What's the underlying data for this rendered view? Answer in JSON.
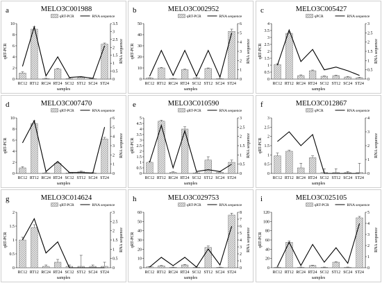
{
  "figure": {
    "x_axis_label": "samples",
    "primary_axis_label": "qRT-PCR",
    "secondary_axis_label": "RNA sequence",
    "bar_fill_color": "#e6e6e6",
    "bar_stroke_color": "#555555",
    "line_color": "#000000"
  },
  "chart_data": [
    {
      "type": "bar",
      "panel_letter": "a",
      "title": "MELO3C001988",
      "categories": [
        "RC12",
        "RT12",
        "RC24",
        "RT24",
        "SC12",
        "ST12",
        "SC24",
        "ST24"
      ],
      "xlabel": "samples",
      "ylabel": "qRT-PCR",
      "y2label": "RNA sequence",
      "ylim": [
        0,
        10
      ],
      "yticks": [
        0,
        2,
        4,
        6,
        8,
        10
      ],
      "y2lim": [
        0,
        3.5
      ],
      "y2ticks": [
        0,
        0.5,
        1,
        1.5,
        2,
        2.5,
        3,
        3.5
      ],
      "legend": {
        "position": "top",
        "bar": "qRT-PCR",
        "line": "RNA sequence"
      },
      "series": [
        {
          "name": "qRT-PCR",
          "kind": "bar",
          "axis": "left",
          "values": [
            1.1,
            9.0,
            0.1,
            1.8,
            0.1,
            0.3,
            0.1,
            6.3
          ],
          "errors": [
            0.2,
            0.4,
            0.05,
            0.1,
            0.05,
            0.1,
            0.05,
            0.2
          ]
        },
        {
          "name": "RNA sequence",
          "kind": "line",
          "axis": "right",
          "values": [
            0.8,
            3.3,
            0.2,
            1.4,
            0.1,
            0.15,
            0.05,
            2.1
          ]
        }
      ]
    },
    {
      "type": "bar",
      "panel_letter": "b",
      "title": "MELO3C002952",
      "categories": [
        "RC12",
        "RT12",
        "RC24",
        "RT24",
        "SC12",
        "ST12",
        "SC24",
        "ST24"
      ],
      "xlabel": "samples",
      "ylabel": "qRT-PCR",
      "y2label": "RNA sequence",
      "ylim": [
        0,
        50
      ],
      "yticks": [
        0,
        10,
        20,
        30,
        40,
        50
      ],
      "y2lim": [
        0,
        6
      ],
      "y2ticks": [
        0,
        1,
        2,
        3,
        4,
        5,
        6
      ],
      "legend": {
        "position": "top",
        "bar": "qRT-PCR",
        "line": "RNA sequence"
      },
      "series": [
        {
          "name": "qRT-PCR",
          "kind": "bar",
          "axis": "left",
          "values": [
            1,
            10,
            0.5,
            8.5,
            1,
            9.5,
            0.5,
            43
          ],
          "errors": [
            0.2,
            0.5,
            0.1,
            0.5,
            0.2,
            0.5,
            0.1,
            2
          ]
        },
        {
          "name": "RNA sequence",
          "kind": "line",
          "axis": "right",
          "values": [
            0.3,
            3.1,
            0.4,
            3.1,
            0.3,
            3.1,
            0.2,
            5.0
          ]
        }
      ]
    },
    {
      "type": "bar",
      "panel_letter": "c",
      "title": "MELO3C005427",
      "categories": [
        "RC12",
        "RT12",
        "RC24",
        "RT24",
        "SC12",
        "ST12",
        "SC24",
        "ST24"
      ],
      "xlabel": "samples",
      "ylabel": "qRT-PCR",
      "y2label": "RNA sequence",
      "ylim": [
        0,
        4
      ],
      "yticks": [
        0,
        0.5,
        1,
        1.5,
        2,
        2.5,
        3,
        3.5,
        4
      ],
      "y2lim": [
        0,
        3
      ],
      "y2ticks": [
        0,
        0.5,
        1,
        1.5,
        2,
        2.5,
        3
      ],
      "legend": {
        "position": "top",
        "bar": "qPCR",
        "line": "RNA sequence"
      },
      "series": [
        {
          "name": "qPCR",
          "kind": "bar",
          "axis": "left",
          "values": [
            1.05,
            3.3,
            0.25,
            0.6,
            0.2,
            0.25,
            0.15,
            0.1
          ],
          "errors": [
            0.05,
            0.1,
            0.05,
            0.05,
            0.03,
            0.03,
            0.03,
            0.03
          ]
        },
        {
          "name": "RNA sequence",
          "kind": "line",
          "axis": "right",
          "values": [
            0.75,
            2.65,
            0.95,
            1.6,
            0.5,
            0.65,
            0.45,
            0.2
          ]
        }
      ]
    },
    {
      "type": "bar",
      "panel_letter": "d",
      "title": "MELO3C007470",
      "categories": [
        "RC12",
        "RT12",
        "RC24",
        "RT24",
        "SC12",
        "ST12",
        "SC24",
        "ST24"
      ],
      "xlabel": "samples",
      "ylabel": "qRT-PCR",
      "y2label": "RNA sequence",
      "ylim": [
        0,
        10
      ],
      "yticks": [
        0,
        2,
        4,
        6,
        8,
        10
      ],
      "y2lim": [
        0,
        6
      ],
      "y2ticks": [
        0,
        1,
        2,
        3,
        4,
        5,
        6
      ],
      "legend": {
        "position": "top",
        "bar": "qRT-PCR",
        "line": "RNA sequence"
      },
      "series": [
        {
          "name": "qRT-PCR",
          "kind": "bar",
          "axis": "left",
          "values": [
            1.0,
            9.0,
            0.1,
            1.8,
            0.1,
            0.3,
            0.1,
            6.2
          ],
          "errors": [
            0.2,
            0.5,
            0.05,
            0.1,
            0.05,
            0.1,
            0.05,
            0.3
          ]
        },
        {
          "name": "RNA sequence",
          "kind": "line",
          "axis": "right",
          "values": [
            3.3,
            5.7,
            0.2,
            1.3,
            0.1,
            0.1,
            0.05,
            5.0
          ]
        }
      ]
    },
    {
      "type": "bar",
      "panel_letter": "e",
      "title": "MELO3C010590",
      "categories": [
        "RC12",
        "RT12",
        "RC24",
        "RT24",
        "SC12",
        "ST12",
        "SC24",
        "ST24"
      ],
      "xlabel": "samples",
      "ylabel": "qRT-PCR",
      "y2label": "RNA sequence",
      "ylim": [
        0,
        5
      ],
      "yticks": [
        0,
        0.5,
        1,
        1.5,
        2,
        2.5,
        3,
        3.5,
        4,
        4.5,
        5
      ],
      "y2lim": [
        0,
        3
      ],
      "y2ticks": [
        0,
        0.5,
        1,
        1.5,
        2,
        2.5,
        3
      ],
      "legend": {
        "position": "top",
        "bar": "qRT-PCR",
        "line": "RNA sequence"
      },
      "series": [
        {
          "name": "qRT-PCR",
          "kind": "bar",
          "axis": "left",
          "values": [
            1.0,
            4.7,
            0.1,
            4.0,
            0.05,
            1.2,
            0.1,
            1.0
          ],
          "errors": [
            0.1,
            0.1,
            0.05,
            0.2,
            0.05,
            0.3,
            0.05,
            0.2
          ]
        },
        {
          "name": "RNA sequence",
          "kind": "line",
          "axis": "right",
          "values": [
            0.6,
            2.6,
            0.3,
            2.3,
            0.1,
            0.2,
            0.1,
            0.5
          ]
        }
      ]
    },
    {
      "type": "bar",
      "panel_letter": "f",
      "title": "MELO3C012867",
      "categories": [
        "RC12",
        "RT12",
        "RC24",
        "RT24",
        "SC12",
        "ST12",
        "SC24",
        "ST24"
      ],
      "xlabel": "samples",
      "ylabel": "qRT-PCR",
      "y2label": "RNA sequence",
      "ylim": [
        0,
        3
      ],
      "yticks": [
        0,
        0.5,
        1,
        1.5,
        2,
        2.5,
        3
      ],
      "y2lim": [
        0,
        4
      ],
      "y2ticks": [
        0,
        1,
        2,
        3,
        4
      ],
      "legend": {
        "position": "top",
        "bar": "qPCR",
        "line": "RNA sequence"
      },
      "series": [
        {
          "name": "qPCR",
          "kind": "bar",
          "axis": "left",
          "values": [
            0.95,
            1.2,
            0.3,
            0.85,
            0.05,
            0.05,
            0.05,
            0.05
          ],
          "errors": [
            0.15,
            0.05,
            0.25,
            0.1,
            0.2,
            0.2,
            0.05,
            0.5
          ]
        },
        {
          "name": "RNA sequence",
          "kind": "line",
          "axis": "right",
          "values": [
            2.3,
            3.0,
            2.0,
            2.8,
            0.0,
            0.0,
            0.0,
            0.0
          ]
        }
      ]
    },
    {
      "type": "bar",
      "panel_letter": "g",
      "title": "MELO3C014624",
      "categories": [
        "RC12",
        "RT12",
        "RC24",
        "RT24",
        "SC12",
        "ST12",
        "SC24",
        "ST24"
      ],
      "xlabel": "samples",
      "ylabel": "qRT-PCR",
      "y2label": "RNA sequence",
      "ylim": [
        0,
        2
      ],
      "yticks": [
        0,
        0.5,
        1,
        1.5,
        2
      ],
      "y2lim": [
        0,
        3
      ],
      "y2ticks": [
        0,
        0.5,
        1,
        1.5,
        2,
        2.5,
        3
      ],
      "legend": {
        "position": "top",
        "bar": "qRT-PCR",
        "line": "RNA sequence"
      },
      "series": [
        {
          "name": "qRT-PCR",
          "kind": "bar",
          "axis": "left",
          "values": [
            1.0,
            1.45,
            0.05,
            0.2,
            0.05,
            0.05,
            0.05,
            0.05
          ],
          "errors": [
            0.1,
            0.1,
            0.05,
            0.1,
            0.05,
            0.4,
            0.05,
            0.15
          ]
        },
        {
          "name": "RNA sequence",
          "kind": "line",
          "axis": "right",
          "values": [
            1.5,
            2.65,
            0.8,
            1.4,
            0.0,
            0.0,
            0.0,
            0.0
          ]
        }
      ]
    },
    {
      "type": "bar",
      "panel_letter": "h",
      "title": "MELO3C029753",
      "categories": [
        "RC12",
        "RT12",
        "RC24",
        "RT24",
        "SC12",
        "ST12",
        "SC24",
        "ST24"
      ],
      "xlabel": "samples",
      "ylabel": "qRT-PCR",
      "y2label": "RNA sequence",
      "ylim": [
        0,
        60
      ],
      "yticks": [
        0,
        10,
        20,
        30,
        40,
        50,
        60
      ],
      "y2lim": [
        0,
        8
      ],
      "y2ticks": [
        0,
        1,
        2,
        3,
        4,
        5,
        6,
        7,
        8
      ],
      "legend": {
        "position": "top",
        "bar": "qRT-PCR",
        "line": "RNA sequence"
      },
      "series": [
        {
          "name": "qRT-PCR",
          "kind": "bar",
          "axis": "left",
          "values": [
            1,
            2,
            0.5,
            3,
            0.5,
            22,
            0.5,
            57
          ],
          "errors": [
            0.3,
            0.5,
            0.2,
            0.5,
            0.2,
            1.5,
            0.2,
            2
          ]
        },
        {
          "name": "RNA sequence",
          "kind": "line",
          "axis": "right",
          "values": [
            0.1,
            1.5,
            0.3,
            1.5,
            0.1,
            2.7,
            0.4,
            6.0
          ]
        }
      ]
    },
    {
      "type": "bar",
      "panel_letter": "i",
      "title": "MELO3C025105",
      "categories": [
        "RC12",
        "RT12",
        "RC24",
        "RT24",
        "SC12",
        "ST12",
        "SC24",
        "ST24"
      ],
      "xlabel": "samples",
      "ylabel": "qRT-PCR",
      "y2label": "RNA sequence",
      "ylim": [
        0,
        120
      ],
      "yticks": [
        0,
        20,
        40,
        60,
        80,
        100,
        120
      ],
      "y2lim": [
        0,
        5
      ],
      "y2ticks": [
        0,
        1,
        2,
        3,
        4,
        5
      ],
      "legend": {
        "position": "top",
        "bar": "qRT-PCR",
        "line": "RNA sequence"
      },
      "series": [
        {
          "name": "qRT-PCR",
          "kind": "bar",
          "axis": "left",
          "values": [
            1,
            55,
            1,
            5,
            1,
            12,
            1,
            108
          ],
          "errors": [
            0.5,
            3,
            0.5,
            0.5,
            0.5,
            1,
            0.5,
            3
          ]
        },
        {
          "name": "RNA sequence",
          "kind": "line",
          "axis": "right",
          "values": [
            0.1,
            2.3,
            0.2,
            2.1,
            0.5,
            1.8,
            0.4,
            4.0
          ]
        }
      ]
    }
  ]
}
